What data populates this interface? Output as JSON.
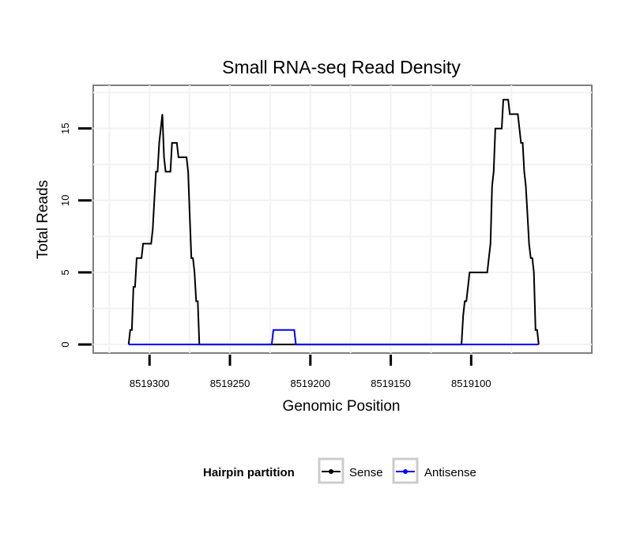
{
  "chart_data": {
    "type": "line",
    "title": "Small RNA-seq Read Density",
    "xlabel": "Genomic Position",
    "ylabel": "Total Reads",
    "x_reversed": true,
    "xlim": [
      8519025,
      8519335
    ],
    "ylim": [
      -0.6,
      18
    ],
    "x_ticks": [
      8519300,
      8519250,
      8519200,
      8519150,
      8519100
    ],
    "x_tick_labels": [
      "8519300",
      "8519250",
      "8519200",
      "8519150",
      "8519100"
    ],
    "y_ticks": [
      0,
      5,
      10,
      15
    ],
    "y_tick_labels": [
      "0",
      "5",
      "10",
      "15"
    ],
    "grid": true,
    "legend": {
      "title": "Hairpin partition",
      "position": "bottom",
      "entries": [
        "Sense",
        "Antisense"
      ]
    },
    "series": [
      {
        "name": "Sense",
        "color": "#000000",
        "step": true,
        "points": [
          [
            8519313,
            0
          ],
          [
            8519312,
            1
          ],
          [
            8519311,
            1
          ],
          [
            8519310,
            4
          ],
          [
            8519309,
            4
          ],
          [
            8519308,
            6
          ],
          [
            8519305,
            6
          ],
          [
            8519304,
            7
          ],
          [
            8519299,
            7
          ],
          [
            8519298,
            8
          ],
          [
            8519297,
            10
          ],
          [
            8519296,
            12
          ],
          [
            8519295,
            12
          ],
          [
            8519294,
            14
          ],
          [
            8519293,
            15
          ],
          [
            8519292,
            16
          ],
          [
            8519291,
            13
          ],
          [
            8519290,
            12
          ],
          [
            8519287,
            12
          ],
          [
            8519286,
            14
          ],
          [
            8519283,
            14
          ],
          [
            8519282,
            13
          ],
          [
            8519277,
            13
          ],
          [
            8519276,
            12
          ],
          [
            8519275,
            9
          ],
          [
            8519274,
            6
          ],
          [
            8519273,
            6
          ],
          [
            8519272,
            5
          ],
          [
            8519271,
            3
          ],
          [
            8519270,
            3
          ],
          [
            8519269,
            0
          ],
          [
            8519106,
            0
          ],
          [
            8519105,
            2
          ],
          [
            8519104,
            3
          ],
          [
            8519103,
            3
          ],
          [
            8519102,
            4
          ],
          [
            8519101,
            5
          ],
          [
            8519090,
            5
          ],
          [
            8519089,
            6
          ],
          [
            8519088,
            7
          ],
          [
            8519087,
            11
          ],
          [
            8519086,
            12
          ],
          [
            8519085,
            15
          ],
          [
            8519081,
            15
          ],
          [
            8519080,
            17
          ],
          [
            8519077,
            17
          ],
          [
            8519076,
            16
          ],
          [
            8519071,
            16
          ],
          [
            8519070,
            15
          ],
          [
            8519069,
            14
          ],
          [
            8519068,
            14
          ],
          [
            8519067,
            12
          ],
          [
            8519066,
            11
          ],
          [
            8519065,
            9
          ],
          [
            8519064,
            7
          ],
          [
            8519063,
            6
          ],
          [
            8519062,
            6
          ],
          [
            8519061,
            5
          ],
          [
            8519060,
            1
          ],
          [
            8519059,
            1
          ],
          [
            8519058,
            0
          ]
        ]
      },
      {
        "name": "Antisense",
        "color": "#0000ff",
        "step": true,
        "points": [
          [
            8519313,
            0
          ],
          [
            8519224,
            0
          ],
          [
            8519223,
            1
          ],
          [
            8519210,
            1
          ],
          [
            8519209,
            0
          ],
          [
            8519058,
            0
          ]
        ]
      }
    ]
  }
}
